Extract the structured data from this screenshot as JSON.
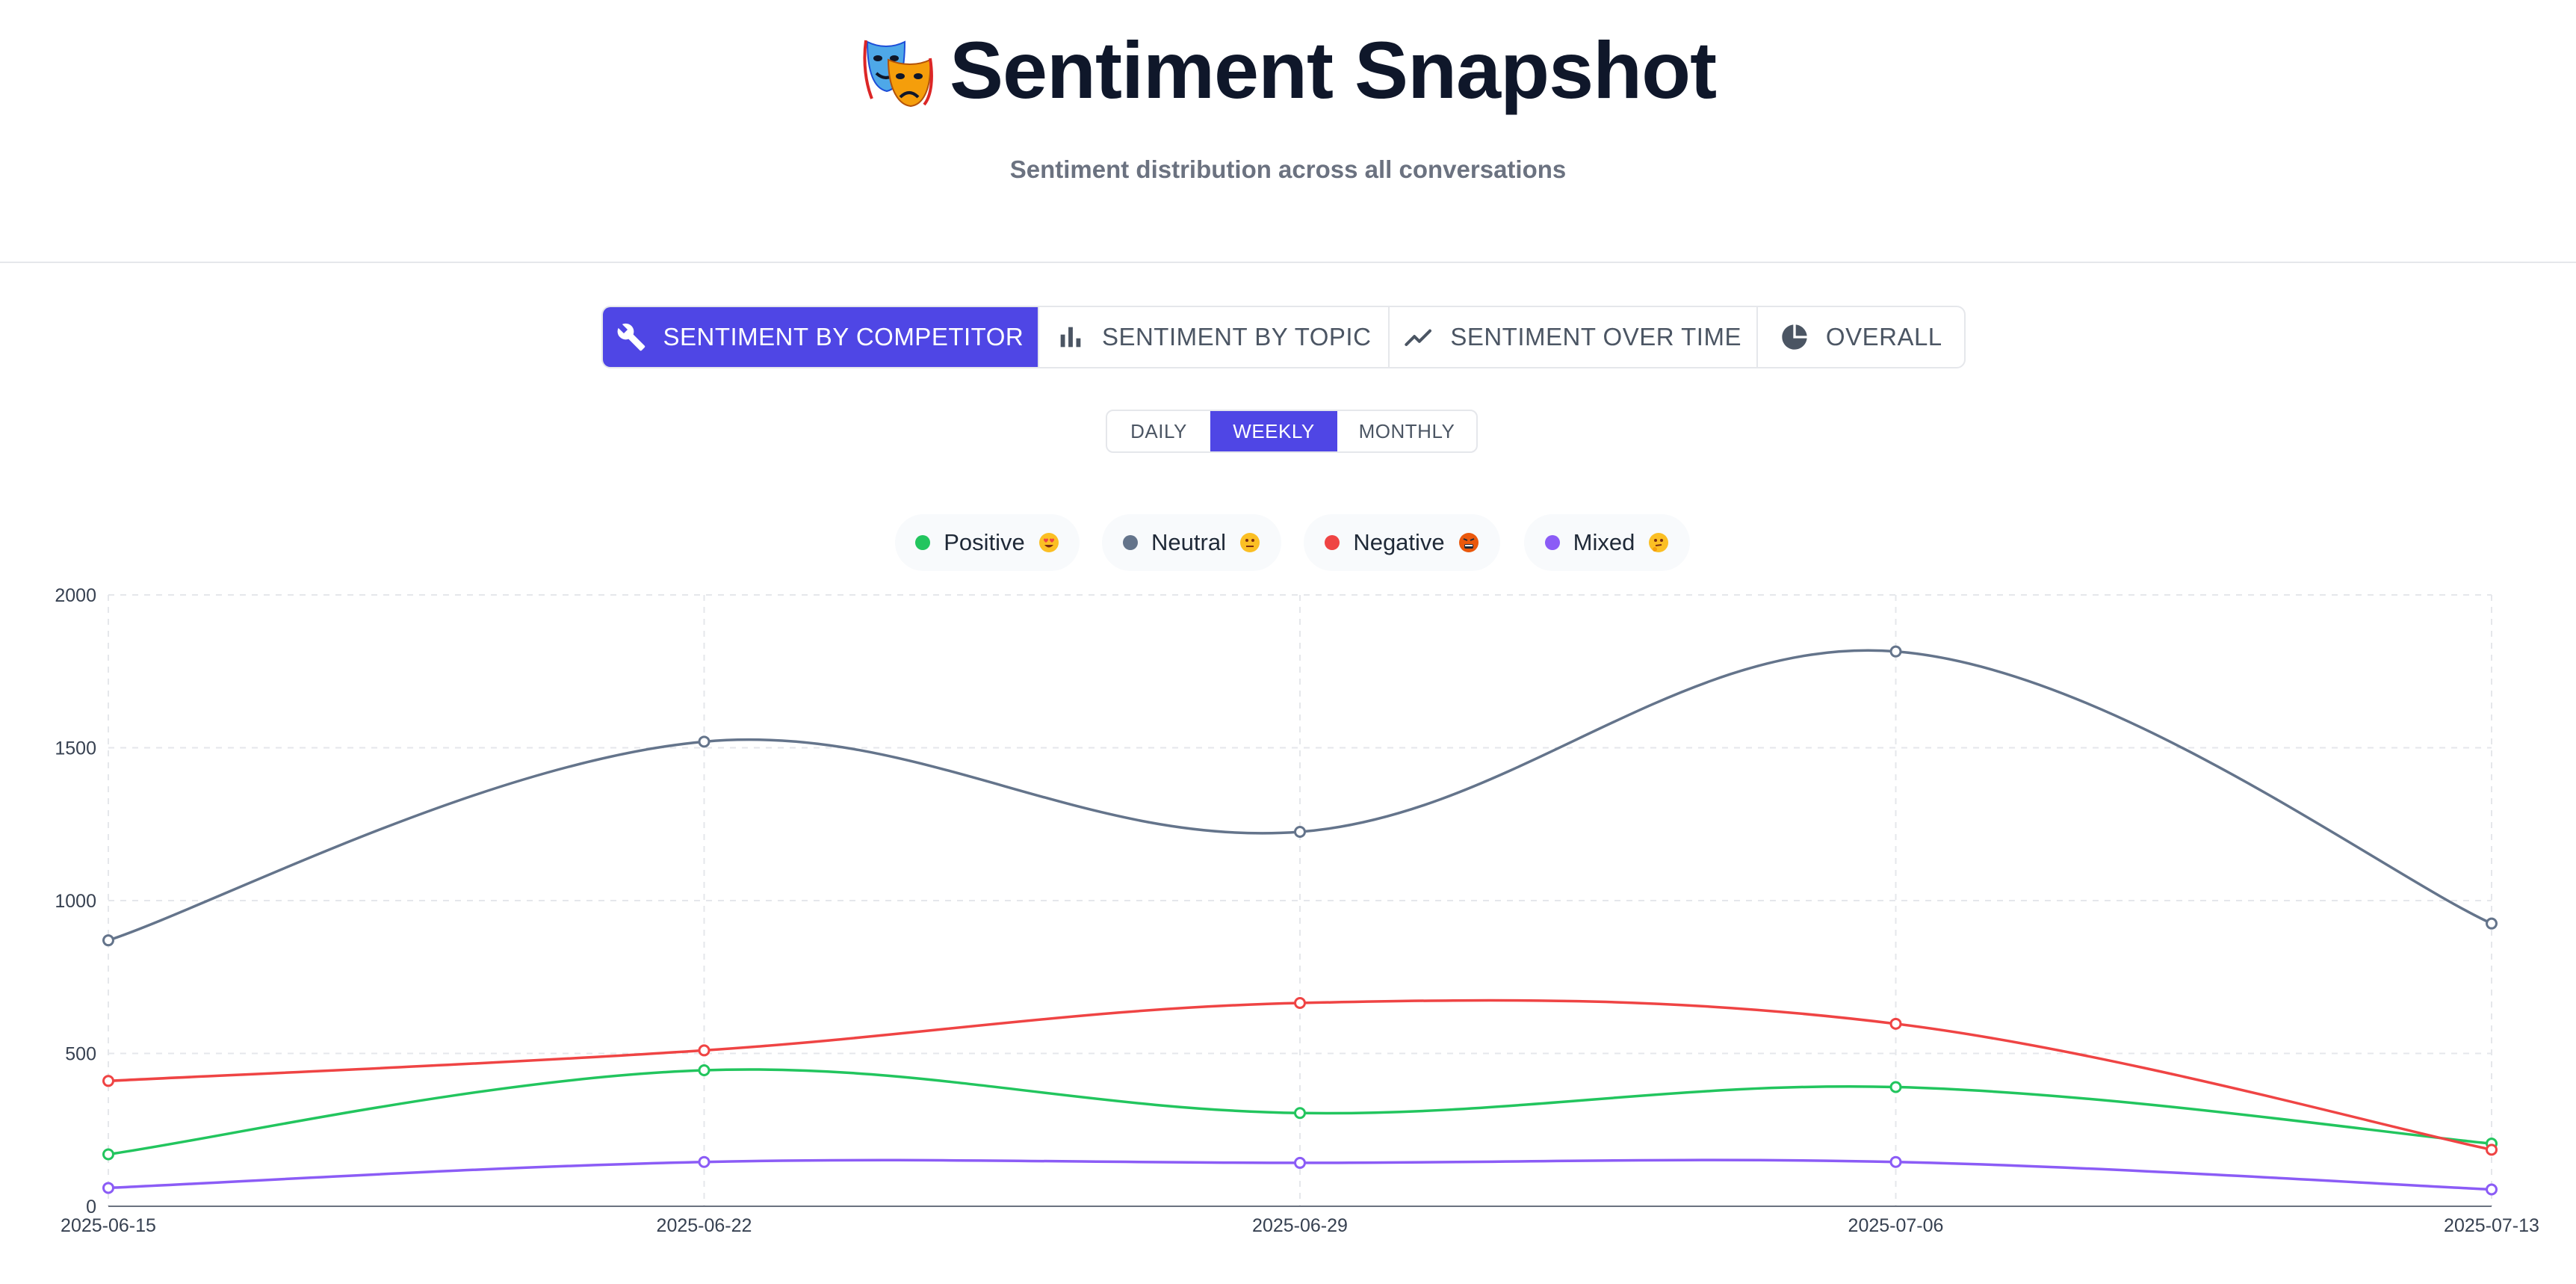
{
  "header": {
    "title": "Sentiment Snapshot",
    "subtitle": "Sentiment distribution across all conversations",
    "title_icon": "theater-masks-icon"
  },
  "tabs": [
    {
      "label": "SENTIMENT BY COMPETITOR",
      "icon": "wrench-icon",
      "active": true
    },
    {
      "label": "SENTIMENT BY TOPIC",
      "icon": "bar-chart-icon",
      "active": false
    },
    {
      "label": "SENTIMENT OVER TIME",
      "icon": "trend-line-icon",
      "active": false
    },
    {
      "label": "OVERALL",
      "icon": "pie-chart-icon",
      "active": false
    }
  ],
  "period": [
    {
      "label": "DAILY",
      "active": false
    },
    {
      "label": "WEEKLY",
      "active": true
    },
    {
      "label": "MONTHLY",
      "active": false
    }
  ],
  "legend": [
    {
      "label": "Positive",
      "emoji": "heart-eyes-emoji",
      "color": "#22c55e"
    },
    {
      "label": "Neutral",
      "emoji": "neutral-face-emoji",
      "color": "#64748b"
    },
    {
      "label": "Negative",
      "emoji": "angry-face-emoji",
      "color": "#ef4444"
    },
    {
      "label": "Mixed",
      "emoji": "thinking-face-emoji",
      "color": "#8b5cf6"
    }
  ],
  "colors": {
    "accent": "#4f46e5",
    "positive": "#22c55e",
    "neutral": "#64748b",
    "negative": "#ef4444",
    "mixed": "#8b5cf6"
  },
  "chart_data": {
    "type": "line",
    "x": [
      "2025-06-15",
      "2025-06-22",
      "2025-06-29",
      "2025-07-06",
      "2025-07-13"
    ],
    "ylim": [
      0,
      2000
    ],
    "yticks": [
      0,
      500,
      1000,
      1500,
      2000
    ],
    "grid": true,
    "smooth": true,
    "legend_position": "top",
    "series": [
      {
        "name": "Positive",
        "color": "#22c55e",
        "values": [
          170,
          445,
          305,
          390,
          205
        ]
      },
      {
        "name": "Neutral",
        "color": "#64748b",
        "values": [
          870,
          1520,
          1225,
          1815,
          925
        ]
      },
      {
        "name": "Negative",
        "color": "#ef4444",
        "values": [
          410,
          510,
          665,
          597,
          185
        ]
      },
      {
        "name": "Mixed",
        "color": "#8b5cf6",
        "values": [
          60,
          145,
          142,
          145,
          55
        ]
      }
    ]
  }
}
